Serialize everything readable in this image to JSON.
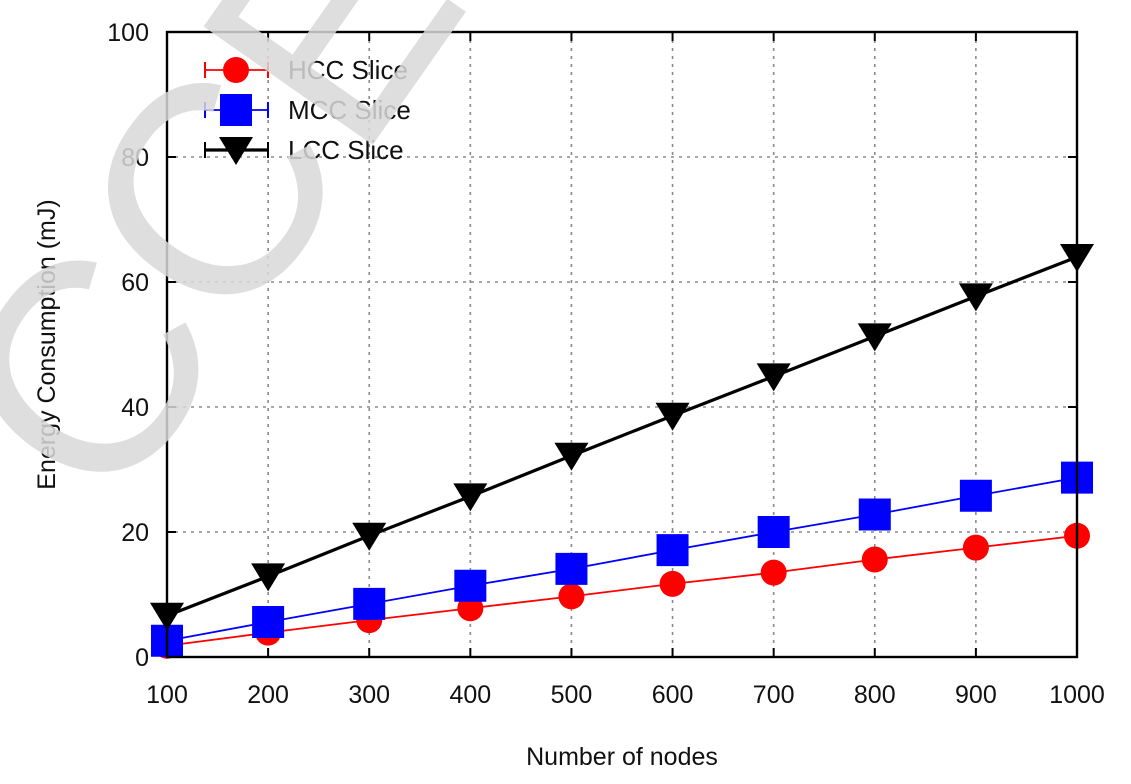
{
  "chart_data": {
    "type": "line",
    "title": "",
    "xlabel": "Number of nodes",
    "ylabel": "Energy Consumption (mJ)",
    "x": [
      100,
      200,
      300,
      400,
      500,
      600,
      700,
      800,
      900,
      1000
    ],
    "xticks": [
      "100",
      "200",
      "300",
      "400",
      "500",
      "600",
      "700",
      "800",
      "900",
      "1000"
    ],
    "yticks": [
      "0",
      "20",
      "40",
      "60",
      "80",
      "100"
    ],
    "xlim": [
      100,
      1000
    ],
    "ylim": [
      0,
      100
    ],
    "grid": true,
    "legend_position": "top-left",
    "series": [
      {
        "name": "HCC Slice",
        "color": "#ff0000",
        "marker": "circle",
        "values": [
          1.8,
          3.9,
          5.9,
          7.8,
          9.7,
          11.7,
          13.5,
          15.6,
          17.5,
          19.4
        ]
      },
      {
        "name": "MCC Slice",
        "color": "#0000ff",
        "marker": "square",
        "values": [
          2.6,
          5.6,
          8.5,
          11.4,
          14.1,
          17.1,
          20.0,
          22.8,
          25.8,
          28.7
        ]
      },
      {
        "name": "LCC Slice",
        "color": "#000000",
        "marker": "triangle-down",
        "values": [
          6.6,
          12.9,
          19.4,
          25.7,
          32.2,
          38.6,
          44.9,
          51.3,
          57.7,
          64.0
        ]
      }
    ]
  },
  "watermark": "CCEPTE"
}
